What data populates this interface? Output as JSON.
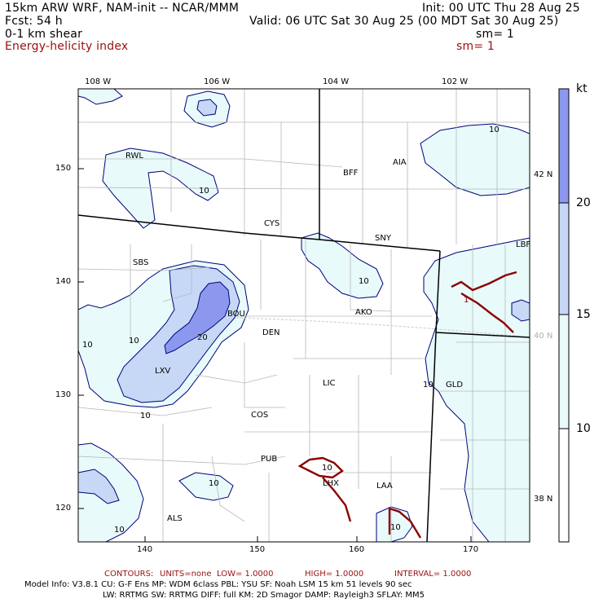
{
  "header": {
    "model_title": "15km ARW WRF, NAM-init -- NCAR/MMM",
    "init": "Init: 00 UTC Thu 28 Aug 25",
    "fcst": "Fcst:   54 h",
    "valid": "Valid: 06 UTC Sat 30 Aug 25 (00 MDT Sat 30 Aug 25)",
    "field_1": "0-1 km shear",
    "sm_1": "sm= 1",
    "field_2": "Energy-helicity index",
    "sm_2": "sm= 1"
  },
  "colors": {
    "shade_10": "#e8fafa",
    "shade_15": "#c6d8f6",
    "shade_20": "#8c98ee",
    "contour_red": "#8b0000",
    "contour_blue": "#00007a",
    "border": "#000000",
    "county": "#b8b8b8"
  },
  "axes": {
    "top_lon_labels": [
      "108 W",
      "106 W",
      "104 W",
      "102 W"
    ],
    "bottom_ticks": [
      "140",
      "150",
      "160",
      "170"
    ],
    "left_ticks": [
      "150",
      "140",
      "130",
      "120"
    ],
    "right_lat_labels": [
      "42 N",
      "40 N",
      "38 N"
    ]
  },
  "colorbar": {
    "unit": "kt",
    "labels": [
      "20",
      "15",
      "10"
    ]
  },
  "stations": [
    "RWL",
    "BFF",
    "AIA",
    "CYS",
    "SNY",
    "LBF",
    "SBS",
    "BOU",
    "AKO",
    "DEN",
    "LXV",
    "LIC",
    "GLD",
    "COS",
    "PUB",
    "LHX",
    "LAA",
    "ALS"
  ],
  "contour_labels": {
    "blue": [
      "10",
      "10",
      "10",
      "10",
      "10",
      "10",
      "10",
      "10",
      "20",
      "10",
      "10"
    ],
    "red": [
      "1",
      "10"
    ]
  },
  "footer": {
    "contours_label": "CONTOURS:",
    "units": "UNITS=none",
    "low": "LOW=  1.0000",
    "high": "HIGH=  1.0000",
    "interval": "INTERVAL=   1.0000",
    "model_info_1": "Model Info: V3.8.1     CU: G-F Ens  MP: WDM 6class   PBL: YSU       SF: Noah LSM    15 km    51 levels    90 sec",
    "model_info_2": "LW: RRTMG    SW: RRTMG   DIFF: full     KM: 2D Smagor DAMP: Rayleigh3   SFLAY: MM5"
  }
}
